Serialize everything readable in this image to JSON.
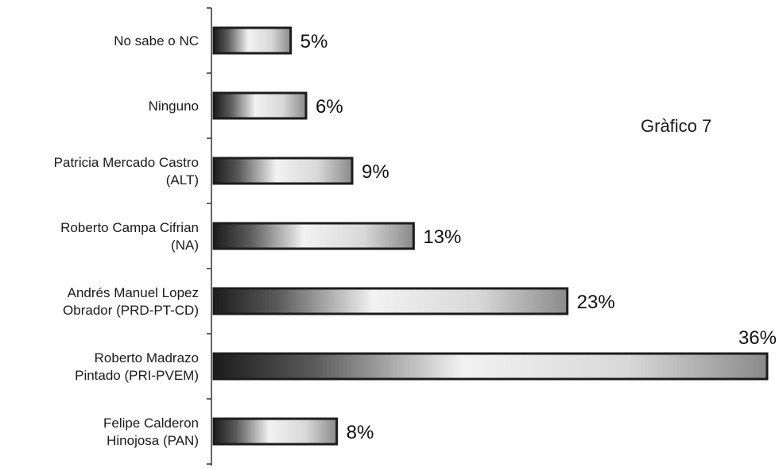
{
  "chart_data": {
    "type": "bar",
    "orientation": "horizontal",
    "title": "Gràfico 7",
    "categories": [
      [
        "No sabe o NC"
      ],
      [
        "Ninguno"
      ],
      [
        "Patricia Mercado Castro",
        "(ALT)"
      ],
      [
        "Roberto Campa Cifrian",
        "(NA)"
      ],
      [
        "Andrés Manuel Lopez",
        "Obrador (PRD-PT-CD)"
      ],
      [
        "Roberto Madrazo",
        "Pintado (PRI-PVEM)"
      ],
      [
        "Felipe Calderon",
        "Hinojosa (PAN)"
      ]
    ],
    "values": [
      5,
      6,
      9,
      13,
      23,
      36,
      8
    ],
    "value_labels": [
      "5%",
      "6%",
      "9%",
      "13%",
      "23%",
      "36%",
      "8%"
    ],
    "xlim": [
      0,
      36
    ],
    "grid": false,
    "legend": "none",
    "colors": {
      "bar_dark": "#1c1c1c",
      "bar_light": "#f2f2f2",
      "axis": "#333333"
    }
  }
}
